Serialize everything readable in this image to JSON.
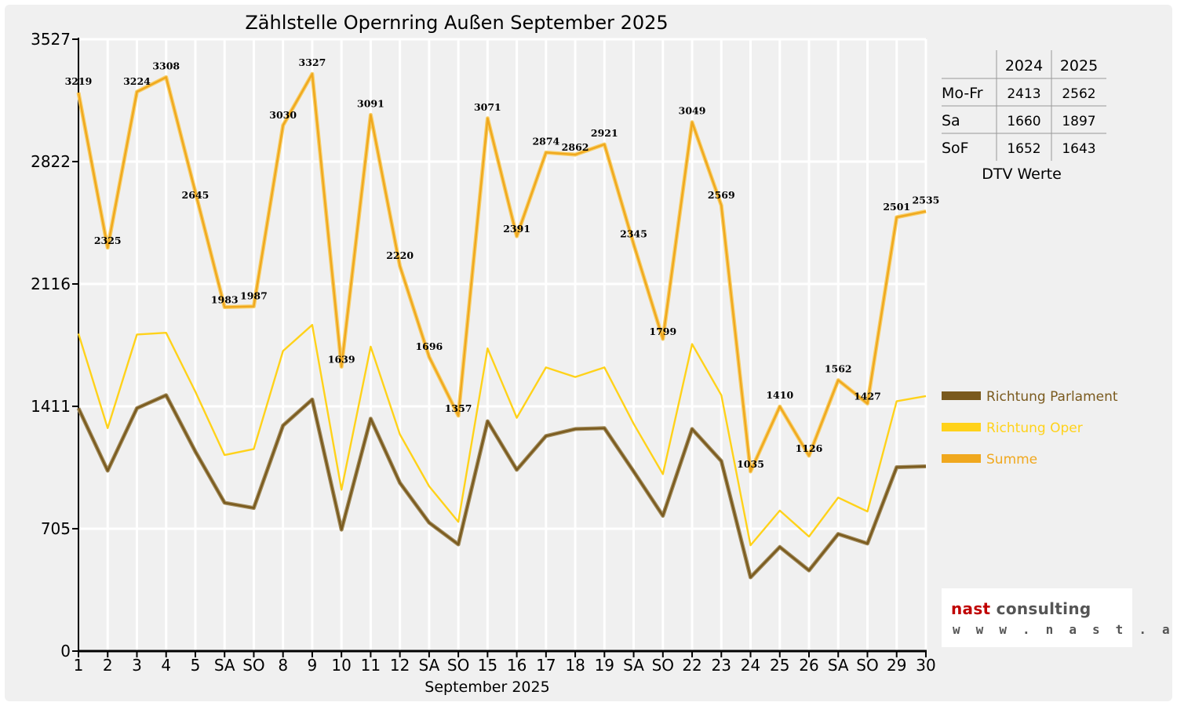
{
  "chart_data": {
    "type": "line",
    "title": "Zählstelle Opernring Außen September 2025",
    "xlabel": "September 2025",
    "ylabel": "",
    "ylim": [
      0,
      3527
    ],
    "yticks": [
      "0",
      "705",
      "1411",
      "2116",
      "2822",
      "3527"
    ],
    "grid": true,
    "legend_position": "right",
    "categories": [
      "1",
      "2",
      "3",
      "4",
      "5",
      "SA",
      "SO",
      "8",
      "9",
      "10",
      "11",
      "12",
      "SA",
      "SO",
      "15",
      "16",
      "17",
      "18",
      "19",
      "SA",
      "SO",
      "22",
      "23",
      "24",
      "25",
      "26",
      "SA",
      "SO",
      "29",
      "30"
    ],
    "weekend_sunday_color": "#e00000",
    "series": [
      {
        "name": "Richtung Parlament",
        "color": "#7a5a1e",
        "values": [
          1400,
          1040,
          1400,
          1475,
          1150,
          855,
          825,
          1300,
          1450,
          700,
          1340,
          970,
          740,
          615,
          1325,
          1045,
          1240,
          1280,
          1285,
          1035,
          780,
          1280,
          1095,
          425,
          600,
          465,
          675,
          620,
          1060,
          1065
        ]
      },
      {
        "name": "Richtung Oper",
        "color": "#ffd21a",
        "values": [
          1830,
          1285,
          1825,
          1835,
          1495,
          1130,
          1165,
          1730,
          1880,
          930,
          1755,
          1250,
          950,
          745,
          1745,
          1345,
          1635,
          1580,
          1635,
          1310,
          1020,
          1770,
          1475,
          610,
          810,
          660,
          885,
          805,
          1440,
          1470
        ]
      },
      {
        "name": "Summe",
        "color": "#f0a81e",
        "values": [
          3219,
          2325,
          3224,
          3308,
          2645,
          1983,
          1987,
          3030,
          3327,
          1639,
          3091,
          2220,
          1696,
          1357,
          3071,
          2391,
          2874,
          2862,
          2921,
          2345,
          1799,
          3049,
          2569,
          1035,
          1410,
          1126,
          1562,
          1427,
          2501,
          2535
        ]
      }
    ],
    "data_labels": [
      "3219",
      "2325",
      "3224",
      "3308",
      "2645",
      "1983",
      "1987",
      "3030",
      "3327",
      "1639",
      "3091",
      "2220",
      "1696",
      "1357",
      "3071",
      "2391",
      "2874",
      "2862",
      "2921",
      "2345",
      "1799",
      "3049",
      "2569",
      "1035",
      "1410",
      "1126",
      "1562",
      "1427",
      "2501",
      "2535"
    ],
    "dtv_table": {
      "caption": "DTV Werte",
      "columns": [
        "2024",
        "2025"
      ],
      "rows": [
        {
          "label": "Mo-Fr",
          "values": [
            "2413",
            "2562"
          ]
        },
        {
          "label": "Sa",
          "values": [
            "1660",
            "1897"
          ]
        },
        {
          "label": "SoF",
          "values": [
            "1652",
            "1643"
          ]
        }
      ]
    }
  },
  "logo": {
    "brand_red": "nast",
    "brand_grey": "consulting",
    "url": "w w w . n a s t . a t"
  }
}
